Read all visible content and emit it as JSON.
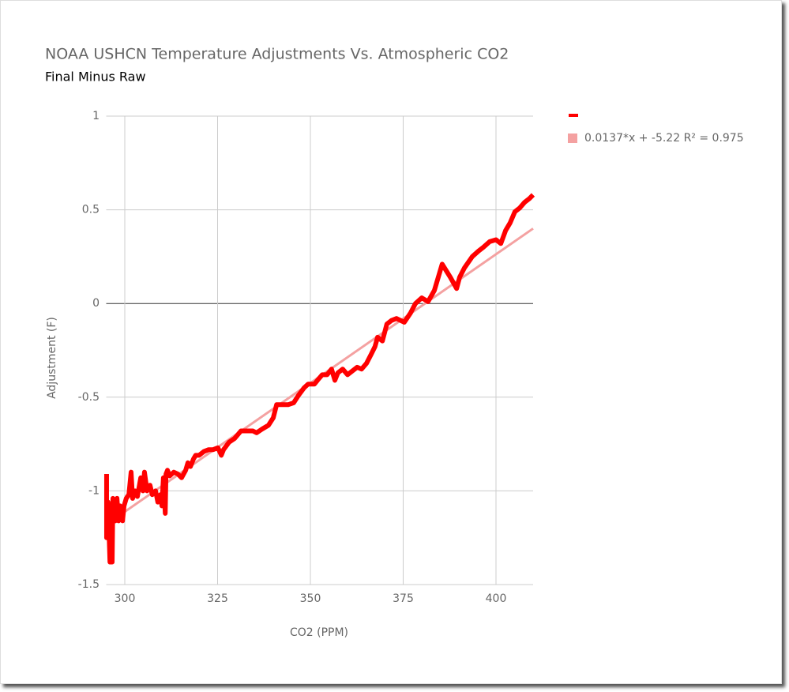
{
  "chart_data": {
    "type": "line",
    "title": "NOAA USHCN Temperature Adjustments Vs. Atmospheric CO2",
    "subtitle": "Final Minus Raw",
    "xlabel": "CO2 (PPM)",
    "ylabel": "Adjustment (F)",
    "xlim": [
      295,
      410
    ],
    "ylim": [
      -1.5,
      1
    ],
    "xticks": [
      300,
      325,
      350,
      375,
      400
    ],
    "yticks": [
      -1.5,
      -1,
      -0.5,
      0,
      0.5,
      1
    ],
    "grid": true,
    "legend": "right",
    "series": [
      {
        "color": "#ff0000",
        "x": [
          295.1,
          295.1,
          295.5,
          296.0,
          296.6,
          296.8,
          297.4,
          297.9,
          298.3,
          298.7,
          299.4,
          299.8,
          300.4,
          301.1,
          301.7,
          302.1,
          302.8,
          303.4,
          304.3,
          304.9,
          305.3,
          306.0,
          306.8,
          307.4,
          308.3,
          308.9,
          309.6,
          310.0,
          310.4,
          310.9,
          311.1,
          311.5,
          312.1,
          313.2,
          314.3,
          315.3,
          316.4,
          317.0,
          317.7,
          318.5,
          319.1,
          320.0,
          321.3,
          322.6,
          323.8,
          325.1,
          326.0,
          326.6,
          328.1,
          329.6,
          331.3,
          332.8,
          334.5,
          335.5,
          337.0,
          338.7,
          340.0,
          340.9,
          342.6,
          344.0,
          345.5,
          346.8,
          348.3,
          349.4,
          351.1,
          351.9,
          353.2,
          354.5,
          355.7,
          356.6,
          357.4,
          358.7,
          360.0,
          361.3,
          362.6,
          363.8,
          365.1,
          366.4,
          367.4,
          368.1,
          369.4,
          370.6,
          371.9,
          373.2,
          375.3,
          377.0,
          378.3,
          380.0,
          381.7,
          383.4,
          385.5,
          387.7,
          389.4,
          390.2,
          391.5,
          393.6,
          395.3,
          396.6,
          398.3,
          400.0,
          401.3,
          402.6,
          403.8,
          405.1,
          406.4,
          407.7,
          409.0,
          410.0
        ],
        "values": [
          -0.91,
          -1.25,
          -1.06,
          -1.38,
          -1.38,
          -1.04,
          -1.16,
          -1.04,
          -1.16,
          -1.08,
          -1.16,
          -1.08,
          -1.04,
          -1.02,
          -0.9,
          -1.04,
          -1.0,
          -1.03,
          -0.93,
          -1.0,
          -0.9,
          -1.0,
          -0.97,
          -1.02,
          -1.0,
          -1.06,
          -1.02,
          -1.08,
          -0.93,
          -1.12,
          -0.91,
          -0.89,
          -0.92,
          -0.9,
          -0.91,
          -0.93,
          -0.89,
          -0.85,
          -0.87,
          -0.83,
          -0.81,
          -0.81,
          -0.79,
          -0.78,
          -0.78,
          -0.77,
          -0.81,
          -0.78,
          -0.74,
          -0.72,
          -0.68,
          -0.68,
          -0.68,
          -0.69,
          -0.67,
          -0.65,
          -0.61,
          -0.54,
          -0.54,
          -0.54,
          -0.53,
          -0.49,
          -0.45,
          -0.43,
          -0.43,
          -0.41,
          -0.38,
          -0.38,
          -0.35,
          -0.41,
          -0.37,
          -0.35,
          -0.38,
          -0.36,
          -0.34,
          -0.35,
          -0.32,
          -0.27,
          -0.23,
          -0.18,
          -0.2,
          -0.11,
          -0.09,
          -0.08,
          -0.1,
          -0.05,
          0.0,
          0.03,
          0.01,
          0.07,
          0.21,
          0.14,
          0.08,
          0.14,
          0.19,
          0.25,
          0.28,
          0.3,
          0.33,
          0.34,
          0.32,
          0.39,
          0.43,
          0.49,
          0.51,
          0.54,
          0.56,
          0.58
        ]
      },
      {
        "name": "0.0137*x + -5.22 R² = 0.975",
        "color": "#f4a1a1",
        "x": [
          295,
          410
        ],
        "values": [
          -1.18,
          0.4
        ]
      }
    ]
  }
}
